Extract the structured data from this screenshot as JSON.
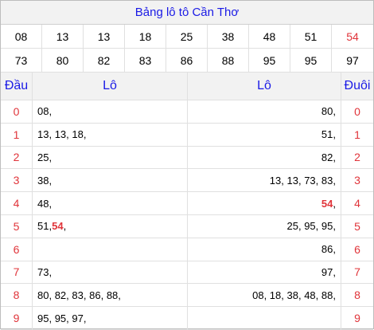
{
  "title": "Bảng lô tô Cần Thơ",
  "numbers_row1": [
    "08",
    "13",
    "13",
    "18",
    "25",
    "38",
    "48",
    "51",
    "54"
  ],
  "numbers_row2": [
    "73",
    "80",
    "82",
    "83",
    "86",
    "88",
    "95",
    "95",
    "97"
  ],
  "highlight_number": "54",
  "header": {
    "dau": "Đầu",
    "lo_left": "Lô",
    "lo_right": "Lô",
    "duoi": "Đuôi"
  },
  "rows": [
    {
      "dau": "0",
      "left": "08,",
      "right": "80,",
      "duoi": "0"
    },
    {
      "dau": "1",
      "left": "13, 13, 18,",
      "right": "51,",
      "duoi": "1"
    },
    {
      "dau": "2",
      "left": "25,",
      "right": "82,",
      "duoi": "2"
    },
    {
      "dau": "3",
      "left": "38,",
      "right": "13, 13, 73, 83,",
      "duoi": "3"
    },
    {
      "dau": "4",
      "left": "48,",
      "right": "54,",
      "duoi": "4"
    },
    {
      "dau": "5",
      "left": "51, 54,",
      "right": "25, 95, 95,",
      "duoi": "5"
    },
    {
      "dau": "6",
      "left": "",
      "right": "86,",
      "duoi": "6"
    },
    {
      "dau": "7",
      "left": "73,",
      "right": "97,",
      "duoi": "7"
    },
    {
      "dau": "8",
      "left": "80, 82, 83, 86, 88,",
      "right": "08, 18, 38, 48, 88,",
      "duoi": "8"
    },
    {
      "dau": "9",
      "left": "95, 95, 97,",
      "right": "",
      "duoi": "9"
    }
  ],
  "colors": {
    "title": "#1a1ae6",
    "accent": "#e0343a",
    "header_bg": "#f2f2f2"
  }
}
